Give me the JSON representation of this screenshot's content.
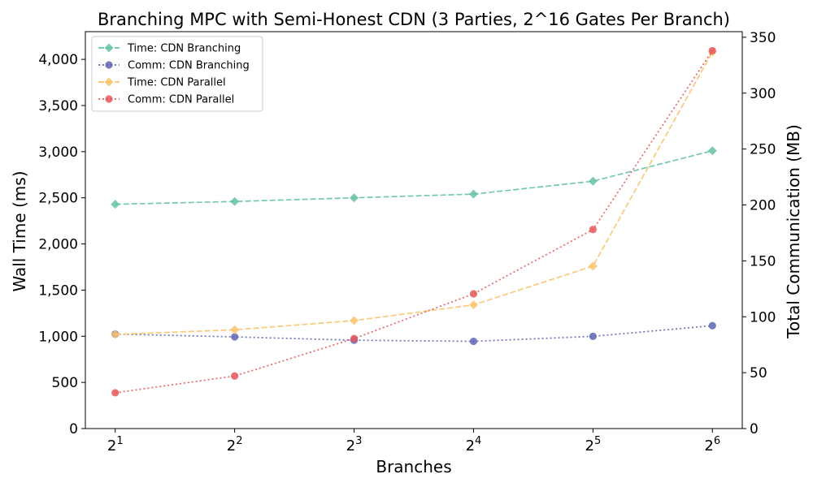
{
  "chart_data": {
    "type": "line",
    "title": "Branching MPC with Semi-Honest CDN (3 Parties, 2^16 Gates Per Branch)",
    "xlabel": "Branches",
    "ylabel_left": "Wall Time (ms)",
    "ylabel_right": "Total Communication (MB)",
    "x_tick_base": "2",
    "x_tick_exponents": [
      "1",
      "2",
      "3",
      "4",
      "5",
      "6"
    ],
    "x": [
      2,
      4,
      8,
      16,
      32,
      64
    ],
    "x_scale": "log2",
    "ylim_left": [
      0,
      4300
    ],
    "yticks_left": [
      0,
      500,
      1000,
      1500,
      2000,
      2500,
      3000,
      3500,
      4000
    ],
    "yticks_left_labels": [
      "0",
      "500",
      "1,000",
      "1,500",
      "2,000",
      "2,500",
      "3,000",
      "3,500",
      "4,000"
    ],
    "ylim_right": [
      0,
      355
    ],
    "yticks_right": [
      0,
      50,
      100,
      150,
      200,
      250,
      300,
      350
    ],
    "yticks_right_labels": [
      "0",
      "50",
      "100",
      "150",
      "200",
      "250",
      "300",
      "350"
    ],
    "legend_position": "top-left",
    "grid": false,
    "series": [
      {
        "name": "Time: CDN Branching",
        "axis": "left",
        "values": [
          2430,
          2460,
          2500,
          2540,
          2680,
          3010
        ],
        "color": "#66c2a5",
        "line_style": "dashed",
        "marker": "diamond"
      },
      {
        "name": "Comm: CDN Branching",
        "axis": "right",
        "values": [
          84.5,
          82,
          79,
          78,
          82.5,
          92
        ],
        "color": "#5e66b0",
        "line_style": "dotted",
        "marker": "circle"
      },
      {
        "name": "Time: CDN Parallel",
        "axis": "left",
        "values": [
          1020,
          1070,
          1170,
          1340,
          1760,
          4080
        ],
        "color": "#f9c46b",
        "line_style": "dashed",
        "marker": "diamond"
      },
      {
        "name": "Comm: CDN Parallel",
        "axis": "right",
        "values": [
          32,
          47,
          80.5,
          120.5,
          178,
          338
        ],
        "color": "#e8575a",
        "line_style": "dotted",
        "marker": "circle"
      }
    ]
  }
}
